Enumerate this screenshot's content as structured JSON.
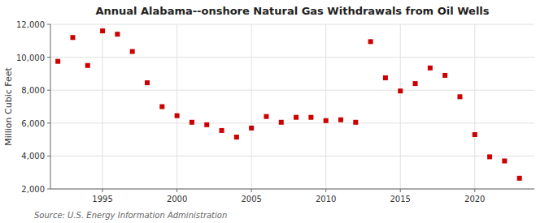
{
  "chart_data": {
    "type": "scatter",
    "title": "Annual Alabama--onshore Natural Gas Withdrawals from Oil Wells",
    "y_label": "Million Cubic Feet",
    "source": "Source: U.S. Energy Information Administration",
    "color": "#cc0000",
    "marker": "square",
    "grid": true,
    "x": [
      1992,
      1993,
      1994,
      1995,
      1996,
      1997,
      1998,
      1999,
      2000,
      2001,
      2002,
      2003,
      2004,
      2005,
      2006,
      2007,
      2008,
      2009,
      2010,
      2011,
      2012,
      2013,
      2014,
      2015,
      2016,
      2017,
      2018,
      2019,
      2020,
      2021,
      2022,
      2023
    ],
    "values": [
      9750,
      11200,
      9500,
      11600,
      11400,
      10350,
      8450,
      7000,
      6450,
      6050,
      5900,
      5550,
      5150,
      5700,
      6400,
      6050,
      6350,
      6350,
      6150,
      6200,
      6050,
      10950,
      8750,
      7950,
      8400,
      9350,
      8900,
      7600,
      5300,
      3950,
      3700,
      2650
    ],
    "xlim": [
      1991.5,
      2024
    ],
    "xticks": [
      1995,
      2000,
      2005,
      2010,
      2015,
      2020
    ],
    "ylim": [
      2000,
      12000
    ],
    "yticks": [
      {
        "value": 2000,
        "label": "2,000"
      },
      {
        "value": 4000,
        "label": "4,000"
      },
      {
        "value": 6000,
        "label": "6,000"
      },
      {
        "value": 8000,
        "label": "8,000"
      },
      {
        "value": 10000,
        "label": "10,000"
      },
      {
        "value": 12000,
        "label": "12,000"
      }
    ]
  }
}
